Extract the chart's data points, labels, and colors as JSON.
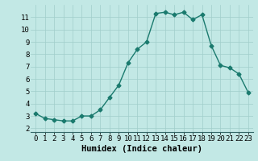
{
  "x": [
    0,
    1,
    2,
    3,
    4,
    5,
    6,
    7,
    8,
    9,
    10,
    11,
    12,
    13,
    14,
    15,
    16,
    17,
    18,
    19,
    20,
    21,
    22,
    23
  ],
  "y": [
    3.2,
    2.8,
    2.7,
    2.6,
    2.6,
    3.0,
    3.0,
    3.5,
    4.5,
    5.5,
    7.3,
    8.4,
    9.0,
    11.3,
    11.4,
    11.2,
    11.4,
    10.8,
    11.2,
    8.7,
    7.1,
    6.9,
    6.4,
    4.9
  ],
  "title": "",
  "xlabel": "Humidex (Indice chaleur)",
  "ylabel": "",
  "xlim": [
    -0.5,
    23.5
  ],
  "ylim": [
    1.7,
    12.0
  ],
  "yticks": [
    2,
    3,
    4,
    5,
    6,
    7,
    8,
    9,
    10,
    11
  ],
  "xticks": [
    0,
    1,
    2,
    3,
    4,
    5,
    6,
    7,
    8,
    9,
    10,
    11,
    12,
    13,
    14,
    15,
    16,
    17,
    18,
    19,
    20,
    21,
    22,
    23
  ],
  "line_color": "#1a7a6e",
  "marker": "D",
  "marker_size": 2.5,
  "bg_color": "#c2e8e5",
  "grid_color": "#a0ceca",
  "tick_fontsize": 6.5,
  "xlabel_fontsize": 7.5,
  "line_width": 1.0
}
